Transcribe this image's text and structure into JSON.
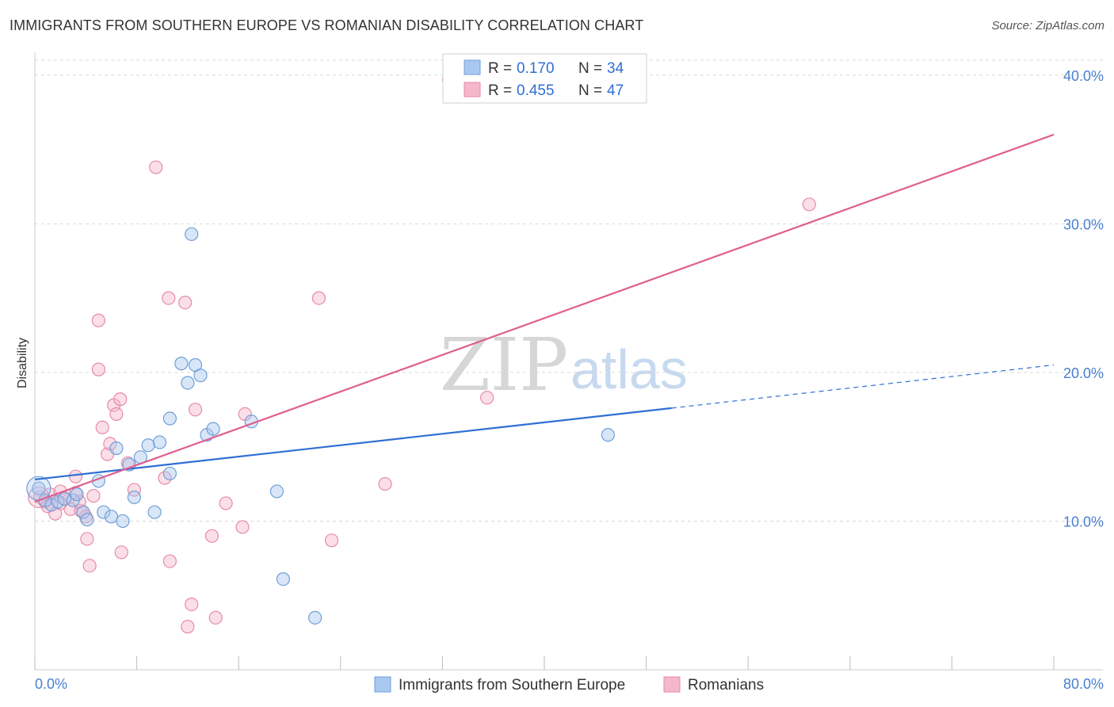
{
  "title": "IMMIGRANTS FROM SOUTHERN EUROPE VS ROMANIAN DISABILITY CORRELATION CHART",
  "source": "Source: ZipAtlas.com",
  "watermark": {
    "zip": "ZIP",
    "atlas": "atlas"
  },
  "colors": {
    "blue_fill": "#a9c8f0",
    "blue_stroke": "#6f9fd8",
    "blue_line": "#2f6fd4",
    "pink_fill": "#f5b8cb",
    "pink_stroke": "#e88aa8",
    "pink_line": "#e06090",
    "grid": "#d9d9d9",
    "axis_text": "#4a7fd0"
  },
  "legend": {
    "rows": [
      {
        "r_label": "R =",
        "r_value": "0.170",
        "n_label": "N =",
        "n_value": "34"
      },
      {
        "r_label": "R =",
        "r_value": "0.455",
        "n_label": "N =",
        "n_value": "47"
      }
    ]
  },
  "chart_data": {
    "type": "scatter",
    "title": "IMMIGRANTS FROM SOUTHERN EUROPE VS ROMANIAN DISABILITY CORRELATION CHART",
    "xlabel": "",
    "ylabel": "Disability",
    "xlim": [
      0,
      80
    ],
    "ylim": [
      0,
      41
    ],
    "x_tick_labels": [
      "0.0%",
      "80.0%"
    ],
    "y_ticks": [
      10,
      20,
      30,
      40
    ],
    "y_tick_labels": [
      "10.0%",
      "20.0%",
      "30.0%",
      "40.0%"
    ],
    "series": [
      {
        "name": "Immigrants from Southern Europe",
        "color": "blue",
        "trend": {
          "x0": 0,
          "y0": 12.8,
          "x1": 50,
          "y1": 17.6,
          "dash_to_x": 80,
          "dash_to_y": 20.5
        },
        "points": [
          [
            0.3,
            12.2
          ],
          [
            0.8,
            11.4
          ],
          [
            1.3,
            11.1
          ],
          [
            1.8,
            11.3
          ],
          [
            2.3,
            11.5
          ],
          [
            3.0,
            11.4
          ],
          [
            3.3,
            11.8
          ],
          [
            3.8,
            10.6
          ],
          [
            4.1,
            10.1
          ],
          [
            5.0,
            12.7
          ],
          [
            5.4,
            10.6
          ],
          [
            6.0,
            10.3
          ],
          [
            6.4,
            14.9
          ],
          [
            6.9,
            10.0
          ],
          [
            7.4,
            13.8
          ],
          [
            7.8,
            11.6
          ],
          [
            8.3,
            14.3
          ],
          [
            8.9,
            15.1
          ],
          [
            9.4,
            10.6
          ],
          [
            9.8,
            15.3
          ],
          [
            10.6,
            13.2
          ],
          [
            10.6,
            16.9
          ],
          [
            11.5,
            20.6
          ],
          [
            12.0,
            19.3
          ],
          [
            12.3,
            29.3
          ],
          [
            12.6,
            20.5
          ],
          [
            13.0,
            19.8
          ],
          [
            13.5,
            15.8
          ],
          [
            14.0,
            16.2
          ],
          [
            17.0,
            16.7
          ],
          [
            19.0,
            12.0
          ],
          [
            19.5,
            6.1
          ],
          [
            22.0,
            3.5
          ],
          [
            45.0,
            15.8
          ]
        ]
      },
      {
        "name": "Romanians",
        "color": "pink",
        "trend": {
          "x0": 0,
          "y0": 11.3,
          "x1": 80,
          "y1": 36.0
        },
        "points": [
          [
            0.4,
            11.6
          ],
          [
            0.8,
            11.3
          ],
          [
            1.2,
            11.8
          ],
          [
            1.6,
            10.5
          ],
          [
            2.0,
            12.0
          ],
          [
            2.4,
            11.5
          ],
          [
            2.8,
            10.8
          ],
          [
            3.2,
            11.9
          ],
          [
            3.2,
            13.0
          ],
          [
            3.6,
            10.7
          ],
          [
            4.0,
            10.3
          ],
          [
            4.1,
            8.8
          ],
          [
            4.3,
            7.0
          ],
          [
            4.6,
            11.7
          ],
          [
            5.0,
            23.5
          ],
          [
            5.0,
            20.2
          ],
          [
            5.3,
            16.3
          ],
          [
            5.7,
            14.5
          ],
          [
            5.9,
            15.2
          ],
          [
            6.2,
            17.8
          ],
          [
            6.4,
            17.2
          ],
          [
            6.7,
            18.2
          ],
          [
            6.8,
            7.9
          ],
          [
            7.3,
            13.9
          ],
          [
            7.8,
            12.1
          ],
          [
            9.5,
            33.8
          ],
          [
            10.2,
            12.9
          ],
          [
            10.5,
            25.0
          ],
          [
            10.6,
            7.3
          ],
          [
            11.8,
            24.7
          ],
          [
            12.3,
            4.4
          ],
          [
            12.0,
            2.9
          ],
          [
            12.6,
            17.5
          ],
          [
            13.9,
            9.0
          ],
          [
            14.2,
            3.5
          ],
          [
            15.0,
            11.2
          ],
          [
            16.3,
            9.6
          ],
          [
            16.5,
            17.2
          ],
          [
            22.3,
            25.0
          ],
          [
            23.3,
            8.7
          ],
          [
            27.5,
            12.5
          ],
          [
            32.5,
            39.7
          ],
          [
            35.5,
            18.3
          ],
          [
            60.8,
            31.3
          ],
          [
            2.0,
            11.2
          ],
          [
            1.0,
            11.0
          ],
          [
            3.5,
            11.3
          ]
        ]
      }
    ]
  },
  "bottom_legend": {
    "items": [
      {
        "label": "Immigrants from Southern Europe"
      },
      {
        "label": "Romanians"
      }
    ]
  }
}
